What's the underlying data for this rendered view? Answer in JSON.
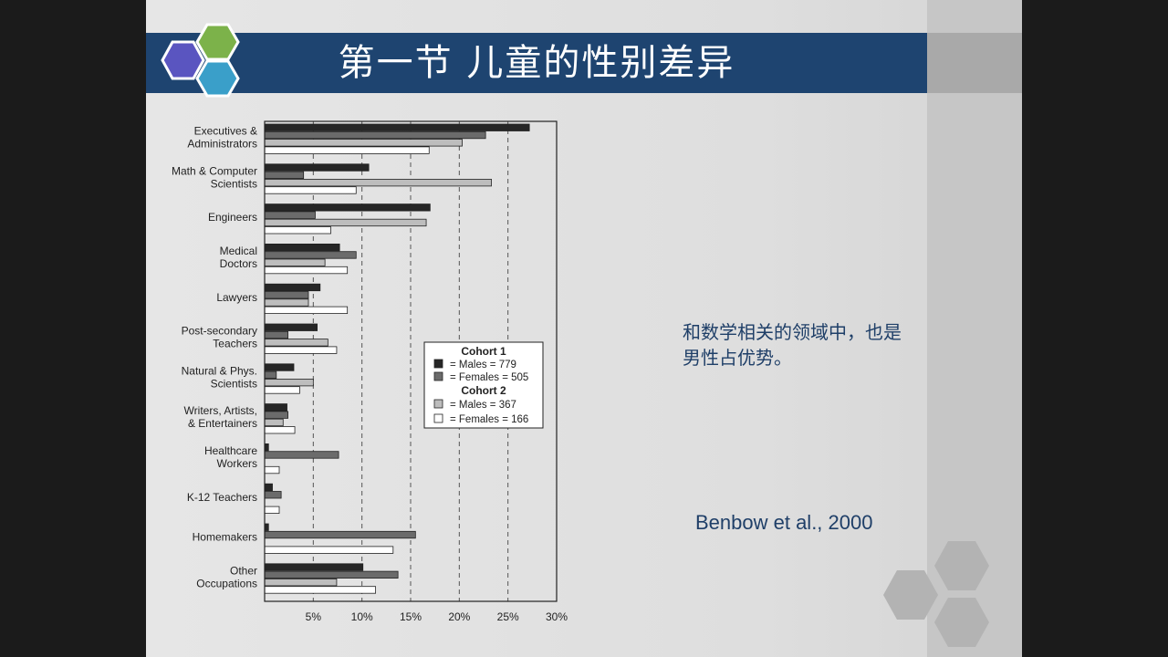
{
  "slide": {
    "title": "第一节  儿童的性别差异",
    "note_line1": "和数学相关的领域中，也是",
    "note_line2": "男性占优势。",
    "citation": "Benbow et al., 2000"
  },
  "colors": {
    "title_bar": "#1e4470",
    "hex_purple": "#5a55c0",
    "hex_green": "#7cb24a",
    "hex_teal": "#3a9fc9",
    "hex_grey": "#b3b3b3",
    "series": [
      "#262626",
      "#6b6b6b",
      "#bdbdbd",
      "#ffffff"
    ]
  },
  "chart_data": {
    "type": "bar",
    "orientation": "horizontal",
    "categories": [
      [
        "Executives &",
        "Administrators"
      ],
      [
        "Math & Computer",
        "Scientists"
      ],
      [
        "Engineers"
      ],
      [
        "Medical",
        "Doctors"
      ],
      [
        "Lawyers"
      ],
      [
        "Post-secondary",
        "Teachers"
      ],
      [
        "Natural & Phys.",
        "Scientists"
      ],
      [
        "Writers, Artists,",
        "& Entertainers"
      ],
      [
        "Healthcare",
        "Workers"
      ],
      [
        "K-12 Teachers"
      ],
      [
        "Homemakers"
      ],
      [
        "Other",
        "Occupations"
      ]
    ],
    "series": [
      {
        "name": "= Males = 779",
        "group": "Cohort 1",
        "values": [
          27.2,
          10.7,
          17.0,
          7.7,
          5.7,
          5.4,
          3.0,
          2.3,
          0.4,
          0.8,
          0.4,
          10.1
        ]
      },
      {
        "name": "= Females = 505",
        "group": "Cohort 1",
        "values": [
          22.7,
          4.0,
          5.2,
          9.4,
          4.5,
          2.4,
          1.2,
          2.4,
          7.6,
          1.7,
          15.5,
          13.7
        ]
      },
      {
        "name": "= Males = 367",
        "group": "Cohort 2",
        "values": [
          20.3,
          23.3,
          16.6,
          6.2,
          4.5,
          6.5,
          5.0,
          1.9,
          0.0,
          0.0,
          0.0,
          7.4
        ]
      },
      {
        "name": "= Females = 166",
        "group": "Cohort 2",
        "values": [
          16.9,
          9.4,
          6.8,
          8.5,
          8.5,
          7.4,
          3.6,
          3.1,
          1.5,
          1.5,
          13.2,
          11.4
        ]
      }
    ],
    "xlim": [
      0,
      30
    ],
    "xticks": [
      "5%",
      "10%",
      "15%",
      "20%",
      "25%",
      "30%"
    ],
    "legend": {
      "position": "right-middle",
      "group1": "Cohort 1",
      "group2": "Cohort 2"
    },
    "grid": "vertical dashed"
  }
}
